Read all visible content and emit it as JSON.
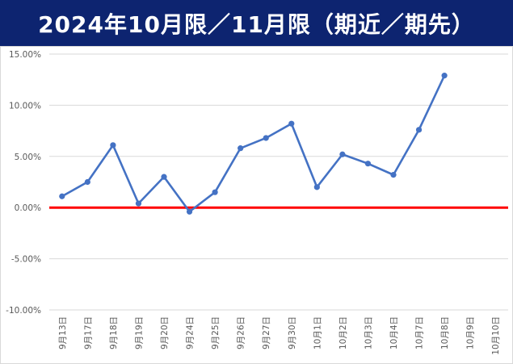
{
  "title": "2024年10月限／11月限（期近／期先）",
  "chart_data": {
    "type": "line",
    "title": "2024年10月限／11月限（期近／期先）",
    "xlabel": "",
    "ylabel": "",
    "categories": [
      "9月13日",
      "9月17日",
      "9月18日",
      "9月19日",
      "9月20日",
      "9月24日",
      "9月25日",
      "9月26日",
      "9月27日",
      "9月30日",
      "10月1日",
      "10月2日",
      "10月3日",
      "10月4日",
      "10月7日",
      "10月8日",
      "10月9日",
      "10月10日"
    ],
    "y_ticks": [
      "15.00%",
      "10.00%",
      "5.00%",
      "0.00%",
      "-5.00%",
      "-10.00%"
    ],
    "ylim": [
      -10,
      15
    ],
    "series": [
      {
        "color": "#4472c4",
        "values": [
          1.1,
          2.5,
          6.1,
          0.4,
          3.0,
          -0.4,
          1.5,
          5.8,
          6.8,
          8.2,
          2.0,
          5.2,
          4.3,
          3.2,
          7.6,
          12.9,
          null,
          null
        ]
      }
    ],
    "zero_line_color": "#ff0000",
    "grid": true,
    "legend": "none"
  }
}
